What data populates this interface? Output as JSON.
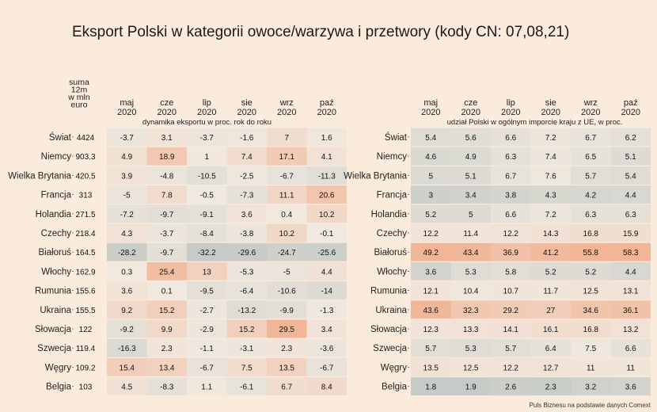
{
  "title": "Eksport Polski w kategorii owoce/warzywa i przetwory (kody CN: 07,08,21)",
  "source": "Puls Biznesu na podstawie danych Comext",
  "colors": {
    "background": "#fbebdc",
    "low": "#c7cbc7",
    "mid": "#f1e9df",
    "high": "#f2b596"
  },
  "chart_data": {
    "type": "heatmap",
    "rows": [
      "Świat",
      "Niemcy",
      "Wielka Brytania",
      "Francja",
      "Holandia",
      "Czechy",
      "Białoruś",
      "Włochy",
      "Rumunia",
      "Ukraina",
      "Słowacja",
      "Szwecja",
      "Węgry",
      "Belgia"
    ],
    "sum_header": [
      "suma",
      "12m",
      "w mln",
      "euro"
    ],
    "sum_values": [
      4424,
      903.3,
      420.5,
      313,
      271.5,
      218.4,
      164.5,
      162.9,
      155.6,
      155.5,
      122,
      119.4,
      109.2,
      103
    ],
    "panels": [
      {
        "subtitle": "dynamika eksportu w proc. rok do roku",
        "columns": [
          [
            "maj",
            "2020"
          ],
          [
            "cze",
            "2020"
          ],
          [
            "lip",
            "2020"
          ],
          [
            "sie",
            "2020"
          ],
          [
            "wrz",
            "2020"
          ],
          [
            "paź",
            "2020"
          ]
        ],
        "values": [
          [
            -3.7,
            3.1,
            -3.7,
            -1.6,
            7,
            1.6
          ],
          [
            4.9,
            18.9,
            1,
            7.4,
            17.1,
            4.1
          ],
          [
            3.9,
            -4.8,
            -10.5,
            -2.5,
            -6.7,
            -11.3
          ],
          [
            -5,
            7.8,
            -0.5,
            -7.3,
            11.1,
            20.6
          ],
          [
            -7.2,
            -9.7,
            -9.1,
            3.6,
            0.4,
            10.2
          ],
          [
            4.3,
            -3.7,
            -8.4,
            -3.8,
            10.2,
            -0.1
          ],
          [
            -28.2,
            -9.7,
            -32.2,
            -29.6,
            -24.7,
            -25.6
          ],
          [
            0.3,
            25.4,
            13,
            -5.3,
            -5,
            4.4
          ],
          [
            3.6,
            0.1,
            -9.5,
            -6.4,
            -10.6,
            -14
          ],
          [
            9.2,
            15.2,
            -2.7,
            -13.2,
            -9.9,
            -1.3
          ],
          [
            -9.2,
            9.9,
            -2.9,
            15.2,
            29.5,
            3.4
          ],
          [
            -16.3,
            2.3,
            -1.1,
            -3.1,
            2.3,
            -3.6
          ],
          [
            15.4,
            13.4,
            -6.7,
            7.5,
            13.5,
            -6.7
          ],
          [
            4.5,
            -8.3,
            1.1,
            -6.1,
            6.7,
            8.4
          ]
        ],
        "color_range": [
          -30,
          0,
          30
        ]
      },
      {
        "subtitle": "udział Polski w ogólnym imporcie kraju z UE, w proc.",
        "columns": [
          [
            "maj",
            "2020"
          ],
          [
            "cze",
            "2020"
          ],
          [
            "lip",
            "2020"
          ],
          [
            "sie",
            "2020"
          ],
          [
            "wrz",
            "2020"
          ],
          [
            "paź",
            "2020"
          ]
        ],
        "values": [
          [
            5.4,
            5.6,
            6.6,
            7.2,
            6.7,
            6.2
          ],
          [
            4.6,
            4.9,
            6.3,
            7.4,
            6.5,
            5.1
          ],
          [
            5,
            5.1,
            6.7,
            7.6,
            5.7,
            5.4
          ],
          [
            3,
            3.4,
            3.8,
            4.3,
            4.2,
            4.4
          ],
          [
            5.2,
            5,
            6.6,
            7.2,
            6.3,
            6.3
          ],
          [
            12.2,
            11.4,
            12.2,
            14.3,
            16.8,
            15.9
          ],
          [
            49.2,
            43.4,
            36.9,
            41.2,
            55.8,
            58.3
          ],
          [
            3.6,
            5.3,
            5.8,
            5.2,
            5.2,
            4.4
          ],
          [
            12.1,
            10.4,
            10.7,
            11.7,
            12.5,
            13.1
          ],
          [
            43.6,
            32.3,
            29.2,
            27,
            34.6,
            36.1
          ],
          [
            12.3,
            13.3,
            14.1,
            16.1,
            16.8,
            13.2
          ],
          [
            5.7,
            5.3,
            5.7,
            6.4,
            7.5,
            6.6
          ],
          [
            13.5,
            12.5,
            12.2,
            12.7,
            11,
            11
          ],
          [
            1.8,
            1.9,
            2.6,
            2.3,
            3.2,
            3.6
          ]
        ],
        "color_range": [
          2,
          8,
          45
        ]
      }
    ]
  }
}
